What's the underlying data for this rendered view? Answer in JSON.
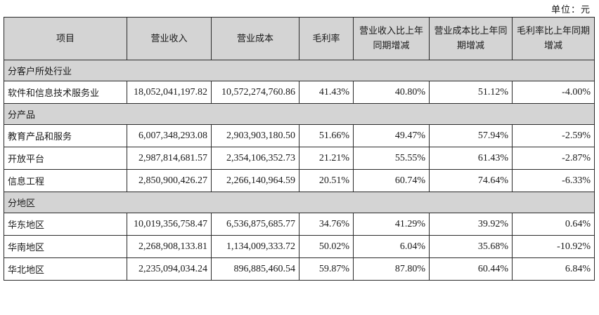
{
  "unit_label": "单位：元",
  "headers": [
    "项目",
    "营业收入",
    "营业成本",
    "毛利率",
    "营业收入比上年同期增减",
    "营业成本比上年同期增减",
    "毛利率比上年同期增减"
  ],
  "sections": [
    {
      "title": "分客户所处行业",
      "rows": [
        {
          "item": "软件和信息技术服务业",
          "revenue": "18,052,041,197.82",
          "cost": "10,572,274,760.86",
          "gross_margin": "41.43%",
          "revenue_change": "40.80%",
          "cost_change": "51.12%",
          "margin_change": "-4.00%"
        }
      ]
    },
    {
      "title": "分产品",
      "rows": [
        {
          "item": "教育产品和服务",
          "revenue": "6,007,348,293.08",
          "cost": "2,903,903,180.50",
          "gross_margin": "51.66%",
          "revenue_change": "49.47%",
          "cost_change": "57.94%",
          "margin_change": "-2.59%"
        },
        {
          "item": "开放平台",
          "revenue": "2,987,814,681.57",
          "cost": "2,354,106,352.73",
          "gross_margin": "21.21%",
          "revenue_change": "55.55%",
          "cost_change": "61.43%",
          "margin_change": "-2.87%"
        },
        {
          "item": "信息工程",
          "revenue": "2,850,900,426.27",
          "cost": "2,266,140,964.59",
          "gross_margin": "20.51%",
          "revenue_change": "60.74%",
          "cost_change": "74.64%",
          "margin_change": "-6.33%"
        }
      ]
    },
    {
      "title": "分地区",
      "rows": [
        {
          "item": "华东地区",
          "revenue": "10,019,356,758.47",
          "cost": "6,536,875,685.77",
          "gross_margin": "34.76%",
          "revenue_change": "41.29%",
          "cost_change": "39.92%",
          "margin_change": "0.64%"
        },
        {
          "item": "华南地区",
          "revenue": "2,268,908,133.81",
          "cost": "1,134,009,333.72",
          "gross_margin": "50.02%",
          "revenue_change": "6.04%",
          "cost_change": "35.68%",
          "margin_change": "-10.92%"
        },
        {
          "item": "华北地区",
          "revenue": "2,235,094,034.24",
          "cost": "896,885,460.54",
          "gross_margin": "59.87%",
          "revenue_change": "87.80%",
          "cost_change": "60.44%",
          "margin_change": "6.84%"
        }
      ]
    }
  ]
}
